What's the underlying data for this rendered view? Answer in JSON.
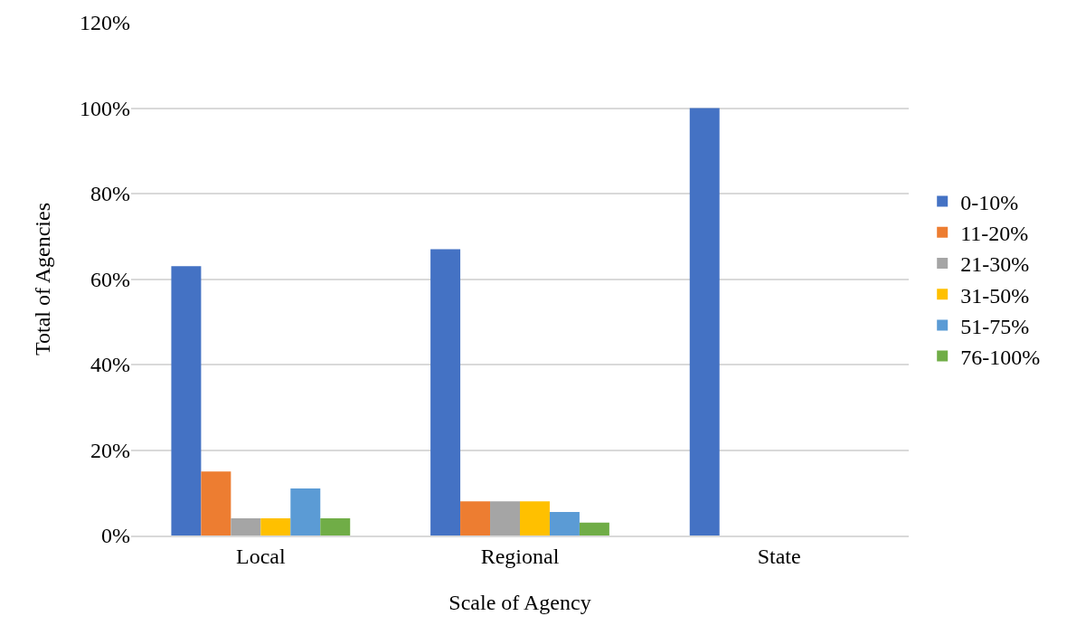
{
  "chart_data": {
    "type": "bar",
    "xlabel": "Scale of Agency",
    "ylabel": "Total of Agencies",
    "categories": [
      "Local",
      "Regional",
      "State"
    ],
    "series": [
      {
        "name": "0-10%",
        "color": "#4472c4",
        "values": [
          63,
          67,
          100
        ]
      },
      {
        "name": "11-20%",
        "color": "#ed7d31",
        "values": [
          15,
          8,
          0
        ]
      },
      {
        "name": "21-30%",
        "color": "#a5a5a5",
        "values": [
          4,
          8,
          0
        ]
      },
      {
        "name": "31-50%",
        "color": "#ffc000",
        "values": [
          4,
          8,
          0
        ]
      },
      {
        "name": "51-75%",
        "color": "#5b9bd5",
        "values": [
          11,
          5.5,
          0
        ]
      },
      {
        "name": "76-100%",
        "color": "#70ad47",
        "values": [
          4,
          3,
          0
        ]
      }
    ],
    "ylim": [
      0,
      120
    ],
    "yticks": [
      {
        "value": 0,
        "label": "0%"
      },
      {
        "value": 20,
        "label": "20%"
      },
      {
        "value": 40,
        "label": "40%"
      },
      {
        "value": 60,
        "label": "60%"
      },
      {
        "value": 80,
        "label": "80%"
      },
      {
        "value": 100,
        "label": "100%"
      },
      {
        "value": 120,
        "label": "120%"
      }
    ],
    "grid": "y",
    "legend": "right"
  }
}
